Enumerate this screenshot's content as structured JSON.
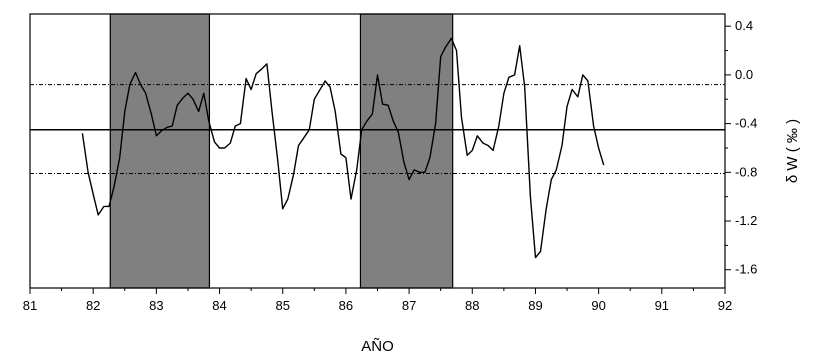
{
  "chart_data": {
    "type": "line",
    "title": "",
    "xlabel": "AÑO",
    "ylabel": "δ W ( ‰ )",
    "xlim": [
      81,
      92
    ],
    "ylim": [
      -1.75,
      0.5
    ],
    "x_ticks": [
      81,
      82,
      83,
      84,
      85,
      86,
      87,
      88,
      89,
      90,
      91,
      92
    ],
    "x_tick_labels": [
      "81",
      "82",
      "83",
      "84",
      "85",
      "86",
      "87",
      "88",
      "89",
      "90",
      "91",
      "92"
    ],
    "y_ticks": [
      0.4,
      0.0,
      -0.4,
      -0.8,
      -1.2,
      -1.6
    ],
    "y_tick_labels": [
      "0.4",
      "0.0",
      "-0.4",
      "-0.8",
      "-1.2",
      "-1.6"
    ],
    "axis_side_y": "right",
    "grid": false,
    "shaded_periods": [
      {
        "x0": 82.27,
        "x1": 83.84,
        "color": "#808080"
      },
      {
        "x0": 86.23,
        "x1": 87.69,
        "color": "#808080"
      }
    ],
    "reference_lines": [
      {
        "y": -0.08,
        "style": "dash-dot"
      },
      {
        "y": -0.45,
        "style": "solid"
      },
      {
        "y": -0.81,
        "style": "dash-dot"
      }
    ],
    "series": [
      {
        "color": "#000000",
        "x": [
          81.83,
          81.92,
          82.0,
          82.08,
          82.17,
          82.25,
          82.33,
          82.42,
          82.5,
          82.58,
          82.67,
          82.75,
          82.83,
          82.92,
          83.0,
          83.08,
          83.17,
          83.25,
          83.33,
          83.42,
          83.5,
          83.58,
          83.67,
          83.75,
          83.83,
          83.92,
          84.0,
          84.08,
          84.17,
          84.25,
          84.33,
          84.42,
          84.5,
          84.58,
          84.67,
          84.75,
          84.83,
          84.92,
          85.0,
          85.08,
          85.17,
          85.25,
          85.33,
          85.42,
          85.5,
          85.58,
          85.67,
          85.75,
          85.83,
          85.92,
          86.0,
          86.08,
          86.17,
          86.25,
          86.33,
          86.42,
          86.5,
          86.58,
          86.67,
          86.75,
          86.83,
          86.92,
          87.0,
          87.08,
          87.17,
          87.25,
          87.33,
          87.42,
          87.5,
          87.58,
          87.67,
          87.75,
          87.83,
          87.92,
          88.0,
          88.08,
          88.17,
          88.25,
          88.33,
          88.42,
          88.5,
          88.58,
          88.67,
          88.75,
          88.83,
          88.92,
          89.0,
          89.08,
          89.17,
          89.25,
          89.33,
          89.42,
          89.5,
          89.58,
          89.67,
          89.75,
          89.83,
          89.92,
          90.0,
          90.08
        ],
        "y": [
          -0.48,
          -0.8,
          -0.98,
          -1.15,
          -1.08,
          -1.08,
          -0.92,
          -0.68,
          -0.3,
          -0.08,
          0.02,
          -0.08,
          -0.15,
          -0.32,
          -0.5,
          -0.46,
          -0.43,
          -0.42,
          -0.25,
          -0.19,
          -0.15,
          -0.2,
          -0.3,
          -0.15,
          -0.38,
          -0.55,
          -0.6,
          -0.6,
          -0.56,
          -0.42,
          -0.4,
          -0.03,
          -0.12,
          0.01,
          0.05,
          0.09,
          -0.3,
          -0.7,
          -1.1,
          -1.02,
          -0.82,
          -0.58,
          -0.52,
          -0.45,
          -0.2,
          -0.13,
          -0.05,
          -0.1,
          -0.3,
          -0.65,
          -0.68,
          -1.02,
          -0.78,
          -0.45,
          -0.38,
          -0.32,
          0.0,
          -0.24,
          -0.25,
          -0.38,
          -0.47,
          -0.72,
          -0.86,
          -0.78,
          -0.8,
          -0.8,
          -0.68,
          -0.4,
          0.15,
          0.23,
          0.3,
          0.2,
          -0.35,
          -0.66,
          -0.62,
          -0.5,
          -0.56,
          -0.58,
          -0.62,
          -0.42,
          -0.15,
          -0.02,
          0.0,
          0.24,
          -0.1,
          -1.0,
          -1.5,
          -1.45,
          -1.1,
          -0.86,
          -0.78,
          -0.58,
          -0.26,
          -0.12,
          -0.18,
          0.0,
          -0.05,
          -0.42,
          -0.6,
          -0.74
        ]
      }
    ]
  }
}
